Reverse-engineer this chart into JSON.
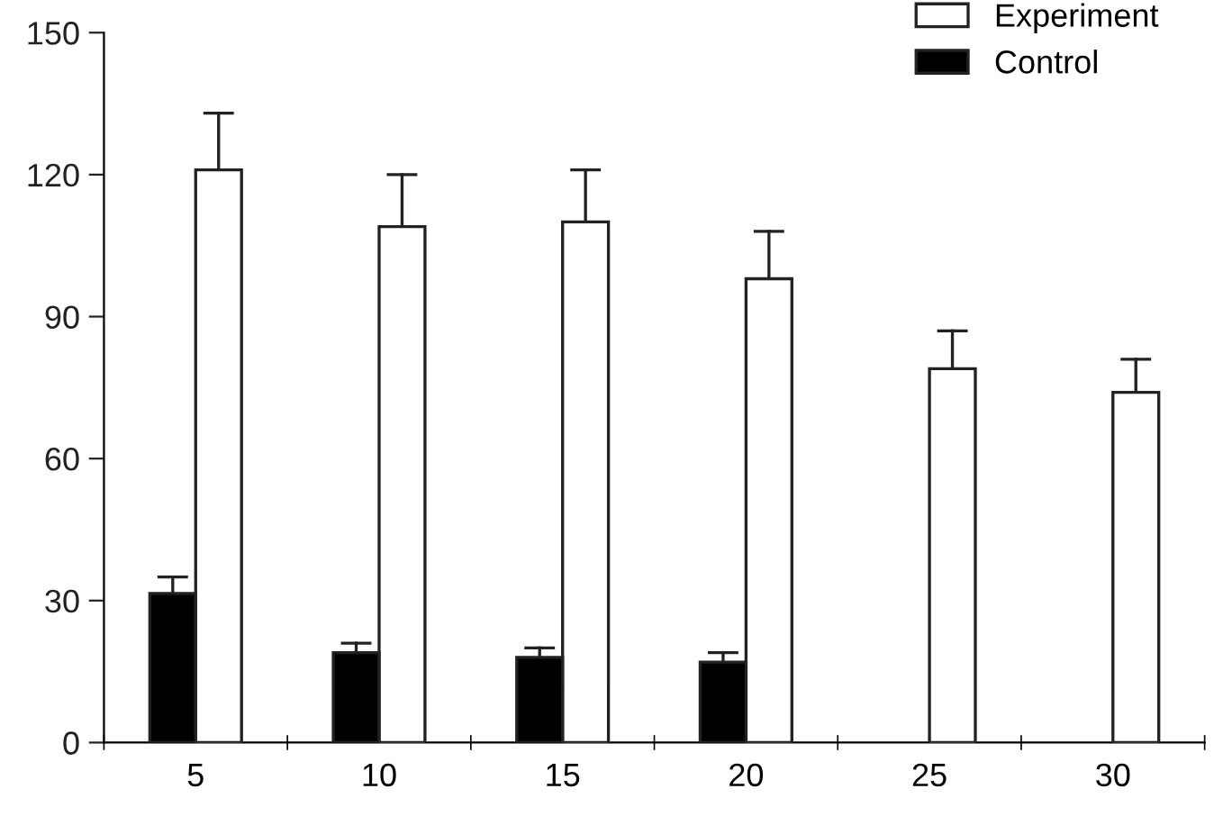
{
  "chart_data": {
    "type": "bar",
    "categories": [
      "5",
      "10",
      "15",
      "20",
      "25",
      "30"
    ],
    "series": [
      {
        "name": "Experiment",
        "color": "#ffffff",
        "values": [
          121,
          109,
          110,
          98,
          79,
          74
        ],
        "errors": [
          [
            121,
            133
          ],
          [
            109,
            120
          ],
          [
            110,
            121
          ],
          [
            98,
            108
          ],
          [
            79,
            87
          ],
          [
            74,
            81
          ]
        ]
      },
      {
        "name": "Control",
        "color": "#000000",
        "values": [
          31.5,
          19,
          18,
          17,
          null,
          null
        ],
        "errors": [
          [
            31.5,
            35
          ],
          [
            19,
            21
          ],
          [
            18,
            20
          ],
          [
            17,
            19
          ],
          null,
          null
        ]
      }
    ],
    "ylim": [
      0,
      150
    ],
    "yticks": [
      0,
      30,
      60,
      90,
      120,
      150
    ],
    "grid": false,
    "legend": "top right"
  }
}
